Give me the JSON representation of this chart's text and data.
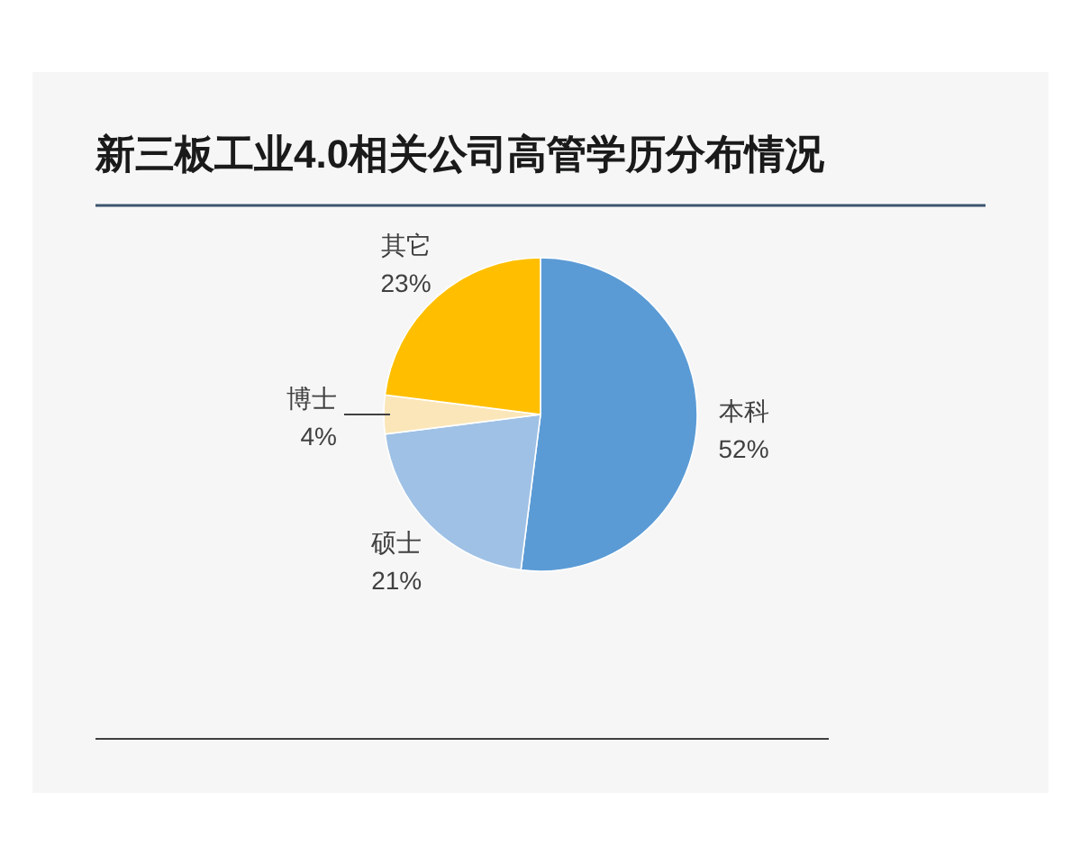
{
  "chart_data": {
    "type": "pie",
    "title": "新三板工业4.0相关公司高管学历分布情况",
    "categories": [
      "本科",
      "硕士",
      "博士",
      "其它"
    ],
    "values": [
      52,
      21,
      4,
      23
    ],
    "colors": [
      "#5b9bd5",
      "#9fc1e5",
      "#fbe6b9",
      "#ffbf00"
    ],
    "value_labels": [
      "52%",
      "21%",
      "4%",
      "23%"
    ]
  }
}
